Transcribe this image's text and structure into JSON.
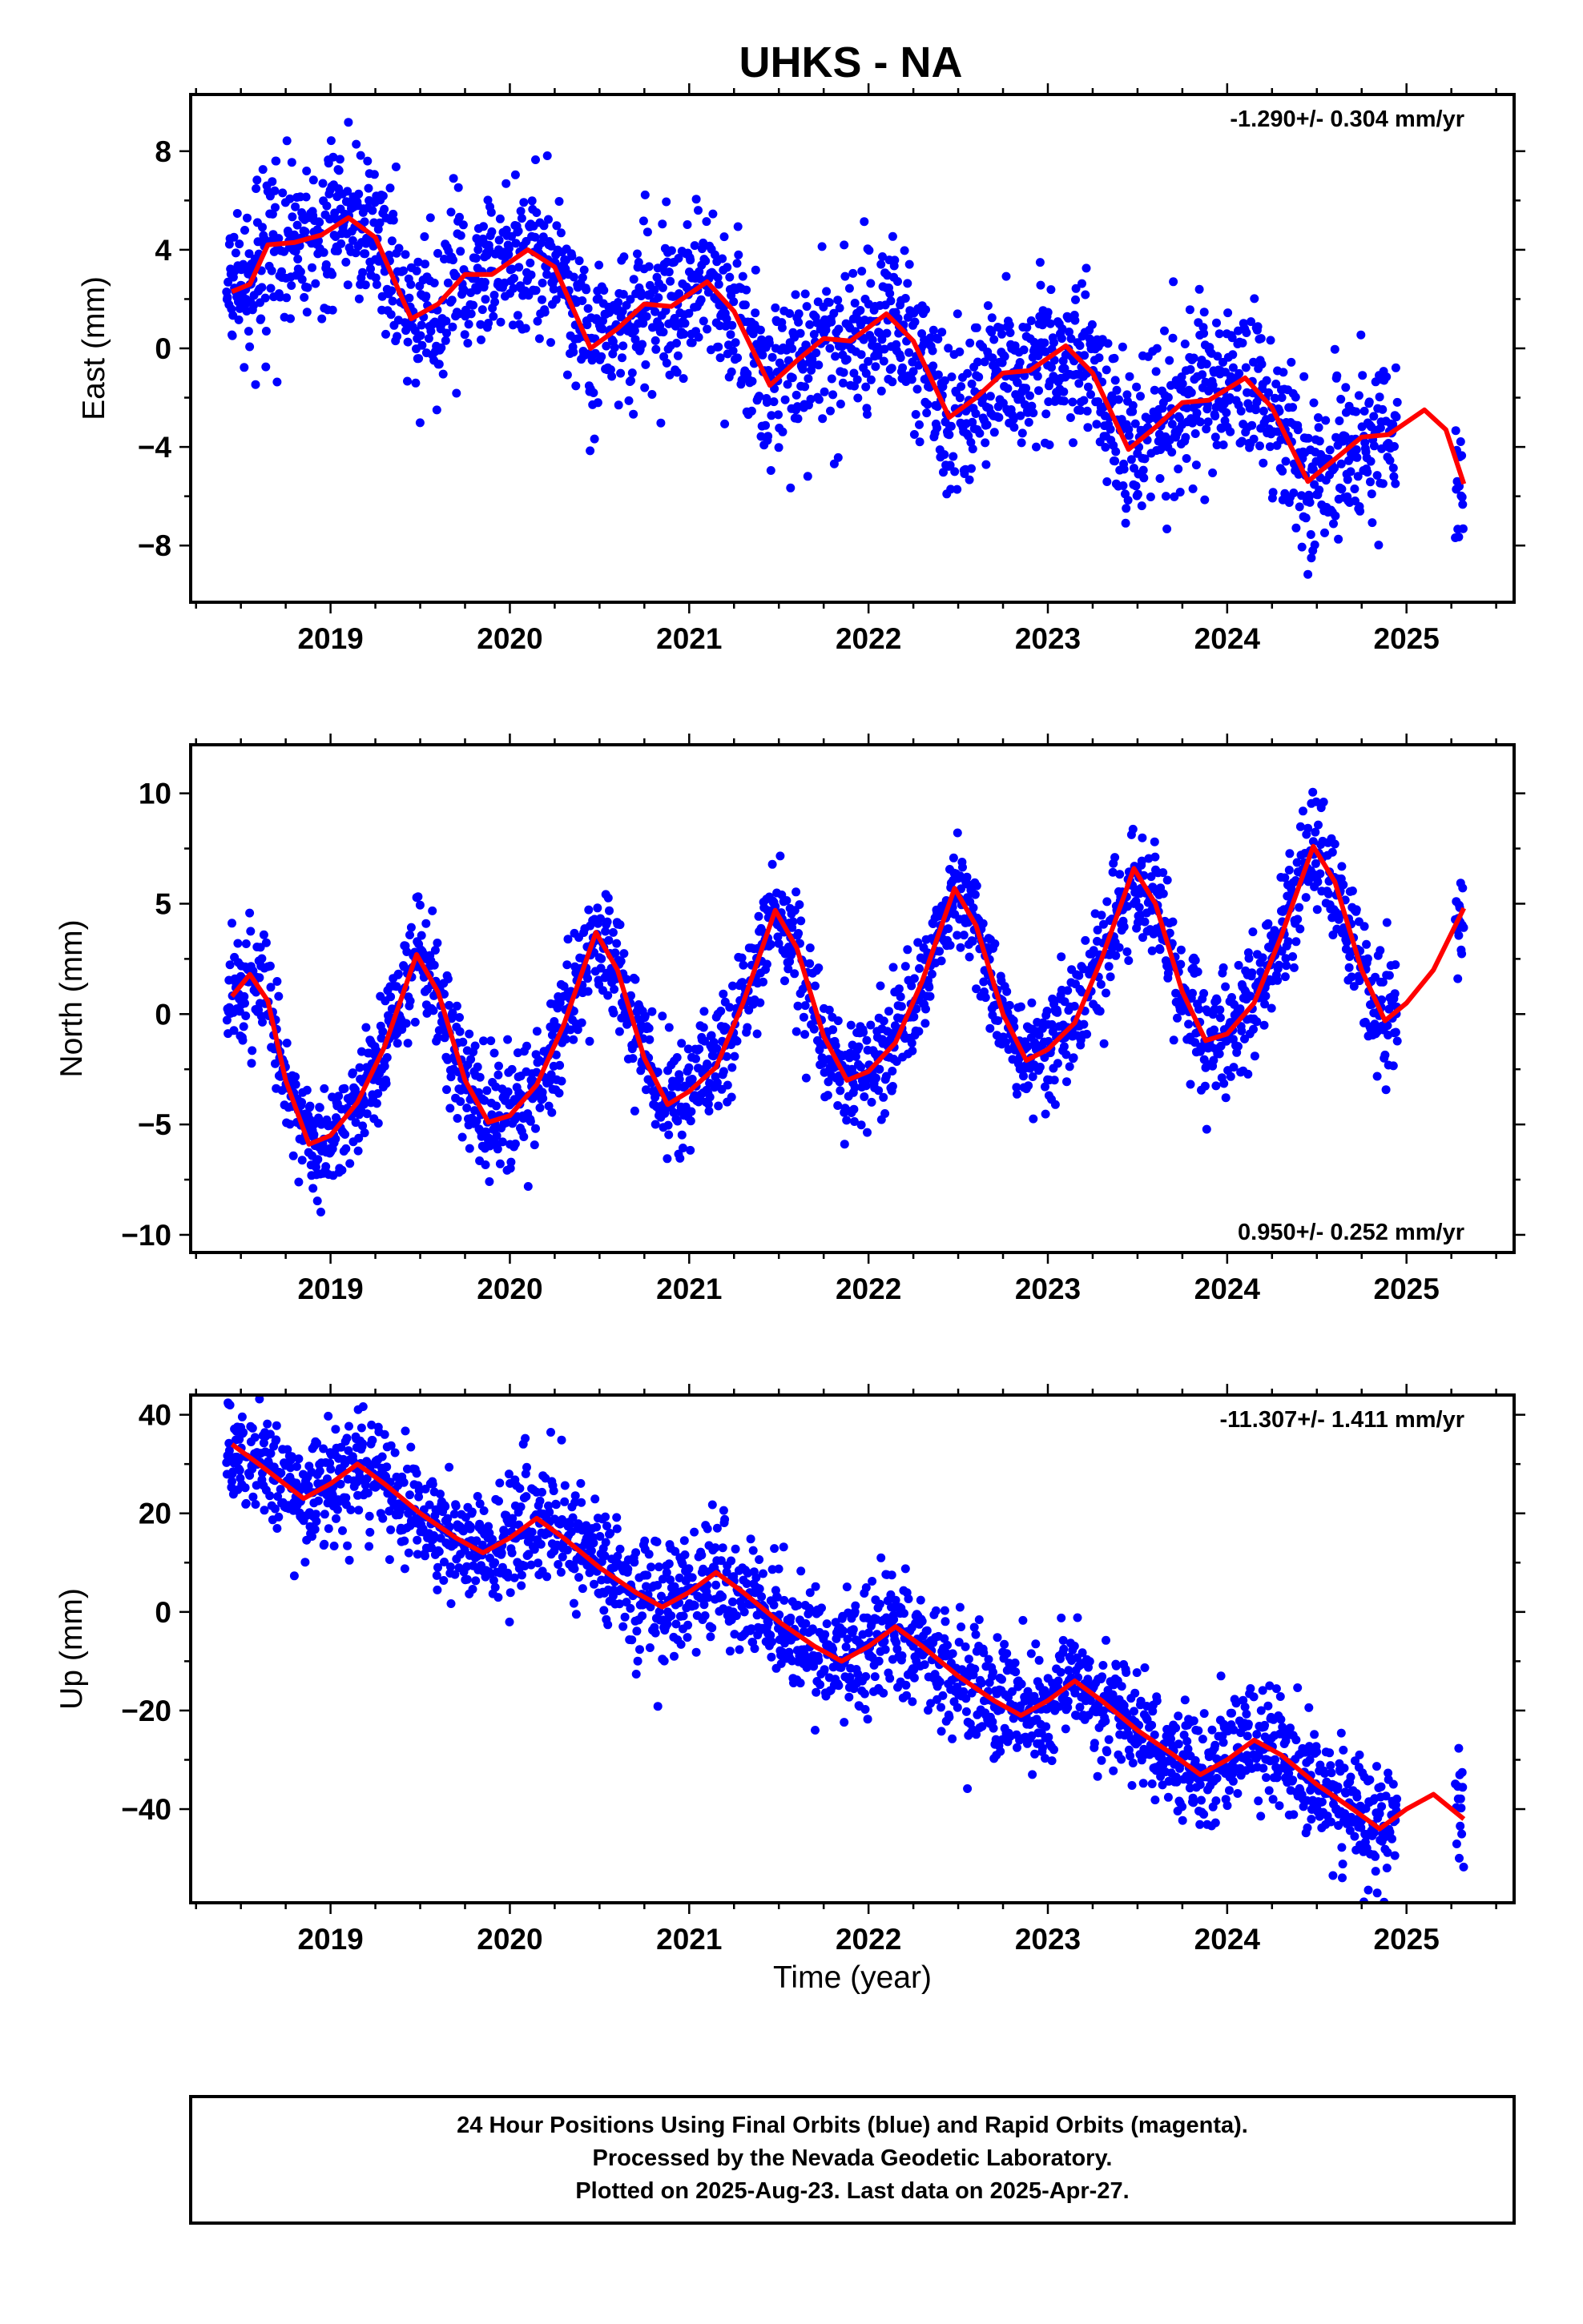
{
  "title": "UHKS - NA",
  "colors": {
    "final_orbits": "#0000ff",
    "model": "#ff0000",
    "frame": "#000000"
  },
  "footer": {
    "lines": [
      "24 Hour Positions Using Final Orbits (blue) and Rapid Orbits (magenta).",
      "Processed by the Nevada Geodetic Laboratory.",
      "Plotted on 2025-Aug-23. Last data on 2025-Apr-27."
    ]
  },
  "chart_data": [
    {
      "type": "scatter",
      "component": "east",
      "xlabel": "",
      "ylabel": "East (mm)",
      "rate_label": "-1.290+/- 0.304 mm/yr",
      "rate_position": "top-right",
      "xlim": [
        2018.22,
        2025.6
      ],
      "ylim": [
        -10.3,
        10.3
      ],
      "x_ticks": [
        2019,
        2020,
        2021,
        2022,
        2023,
        2024,
        2025
      ],
      "y_ticks": [
        -8,
        -4,
        0,
        4,
        8
      ],
      "y_tick_labels": [
        "−8",
        "−4",
        "0",
        "4",
        "8"
      ],
      "data_start": 2018.42,
      "data_end": 2025.32,
      "trend_rate": -1.29,
      "noise_sd": 1.6,
      "model_curve": [
        [
          2018.45,
          2.3
        ],
        [
          2018.55,
          2.6
        ],
        [
          2018.65,
          4.2
        ],
        [
          2018.8,
          4.3
        ],
        [
          2018.95,
          4.6
        ],
        [
          2019.1,
          5.3
        ],
        [
          2019.25,
          4.5
        ],
        [
          2019.45,
          1.2
        ],
        [
          2019.6,
          1.8
        ],
        [
          2019.75,
          3.0
        ],
        [
          2019.9,
          3.0
        ],
        [
          2020.1,
          4.0
        ],
        [
          2020.25,
          3.3
        ],
        [
          2020.45,
          0.0
        ],
        [
          2020.6,
          0.8
        ],
        [
          2020.75,
          1.8
        ],
        [
          2020.9,
          1.7
        ],
        [
          2021.1,
          2.7
        ],
        [
          2021.25,
          1.5
        ],
        [
          2021.45,
          -1.5
        ],
        [
          2021.6,
          -0.5
        ],
        [
          2021.75,
          0.4
        ],
        [
          2021.9,
          0.3
        ],
        [
          2022.1,
          1.4
        ],
        [
          2022.25,
          0.3
        ],
        [
          2022.45,
          -2.8
        ],
        [
          2022.6,
          -2.0
        ],
        [
          2022.75,
          -1.0
        ],
        [
          2022.9,
          -0.9
        ],
        [
          2023.1,
          0.1
        ],
        [
          2023.25,
          -1.0
        ],
        [
          2023.45,
          -4.1
        ],
        [
          2023.6,
          -3.2
        ],
        [
          2023.75,
          -2.2
        ],
        [
          2023.9,
          -2.1
        ],
        [
          2024.1,
          -1.2
        ],
        [
          2024.25,
          -2.4
        ],
        [
          2024.45,
          -5.4
        ],
        [
          2024.6,
          -4.5
        ],
        [
          2024.75,
          -3.6
        ],
        [
          2024.9,
          -3.5
        ],
        [
          2025.1,
          -2.5
        ],
        [
          2025.22,
          -3.3
        ],
        [
          2025.32,
          -5.5
        ]
      ]
    },
    {
      "type": "scatter",
      "component": "north",
      "xlabel": "",
      "ylabel": "North (mm)",
      "rate_label": "0.950+/- 0.252 mm/yr",
      "rate_position": "bottom-right",
      "xlim": [
        2018.22,
        2025.6
      ],
      "ylim": [
        -10.8,
        12.2
      ],
      "x_ticks": [
        2019,
        2020,
        2021,
        2022,
        2023,
        2024,
        2025
      ],
      "y_ticks": [
        -10,
        -5,
        0,
        5,
        10
      ],
      "y_tick_labels": [
        "−10",
        "−5",
        "0",
        "5",
        "10"
      ],
      "data_start": 2018.42,
      "data_end": 2025.32,
      "trend_rate": 0.95,
      "noise_sd": 1.3,
      "model_curve": [
        [
          2018.45,
          0.8
        ],
        [
          2018.55,
          1.8
        ],
        [
          2018.65,
          0.6
        ],
        [
          2018.75,
          -3.0
        ],
        [
          2018.88,
          -5.9
        ],
        [
          2019.0,
          -5.5
        ],
        [
          2019.15,
          -4.0
        ],
        [
          2019.3,
          -1.5
        ],
        [
          2019.48,
          2.7
        ],
        [
          2019.6,
          1.0
        ],
        [
          2019.75,
          -3.0
        ],
        [
          2019.88,
          -4.9
        ],
        [
          2020.0,
          -4.6
        ],
        [
          2020.15,
          -3.2
        ],
        [
          2020.3,
          -0.5
        ],
        [
          2020.48,
          3.7
        ],
        [
          2020.6,
          2.0
        ],
        [
          2020.75,
          -2.0
        ],
        [
          2020.88,
          -4.1
        ],
        [
          2021.0,
          -3.5
        ],
        [
          2021.15,
          -2.4
        ],
        [
          2021.3,
          0.5
        ],
        [
          2021.48,
          4.7
        ],
        [
          2021.6,
          3.0
        ],
        [
          2021.75,
          -1.0
        ],
        [
          2021.88,
          -3.0
        ],
        [
          2022.0,
          -2.6
        ],
        [
          2022.15,
          -1.3
        ],
        [
          2022.3,
          1.5
        ],
        [
          2022.48,
          5.7
        ],
        [
          2022.6,
          4.0
        ],
        [
          2022.75,
          0.0
        ],
        [
          2022.88,
          -2.1
        ],
        [
          2023.0,
          -1.6
        ],
        [
          2023.15,
          -0.4
        ],
        [
          2023.3,
          2.5
        ],
        [
          2023.48,
          6.6
        ],
        [
          2023.6,
          5.0
        ],
        [
          2023.75,
          1.0
        ],
        [
          2023.88,
          -1.2
        ],
        [
          2024.0,
          -0.9
        ],
        [
          2024.15,
          0.5
        ],
        [
          2024.3,
          3.5
        ],
        [
          2024.48,
          7.6
        ],
        [
          2024.6,
          6.0
        ],
        [
          2024.75,
          2.0
        ],
        [
          2024.88,
          -0.3
        ],
        [
          2025.0,
          0.5
        ],
        [
          2025.15,
          2.0
        ],
        [
          2025.32,
          4.8
        ]
      ]
    },
    {
      "type": "scatter",
      "component": "up",
      "xlabel": "Time (year)",
      "ylabel": "Up (mm)",
      "rate_label": "-11.307+/- 1.411 mm/yr",
      "rate_position": "top-right",
      "xlim": [
        2018.22,
        2025.6
      ],
      "ylim": [
        -59,
        44
      ],
      "x_ticks": [
        2019,
        2020,
        2021,
        2022,
        2023,
        2024,
        2025
      ],
      "y_ticks": [
        -40,
        -20,
        0,
        20,
        40
      ],
      "y_tick_labels": [
        "−40",
        "−20",
        "0",
        "20",
        "40"
      ],
      "data_start": 2018.42,
      "data_end": 2025.32,
      "trend_rate": -11.307,
      "noise_sd": 6,
      "model_curve": [
        [
          2018.45,
          34
        ],
        [
          2018.6,
          30
        ],
        [
          2018.85,
          23
        ],
        [
          2019.0,
          26
        ],
        [
          2019.15,
          30
        ],
        [
          2019.3,
          26
        ],
        [
          2019.5,
          20
        ],
        [
          2019.7,
          15
        ],
        [
          2019.85,
          12
        ],
        [
          2020.0,
          15
        ],
        [
          2020.15,
          19
        ],
        [
          2020.3,
          15
        ],
        [
          2020.5,
          9
        ],
        [
          2020.7,
          4
        ],
        [
          2020.85,
          1
        ],
        [
          2021.0,
          4
        ],
        [
          2021.15,
          8
        ],
        [
          2021.3,
          4
        ],
        [
          2021.5,
          -2
        ],
        [
          2021.7,
          -7
        ],
        [
          2021.85,
          -10
        ],
        [
          2022.0,
          -7
        ],
        [
          2022.15,
          -3
        ],
        [
          2022.3,
          -7
        ],
        [
          2022.5,
          -13
        ],
        [
          2022.7,
          -18
        ],
        [
          2022.85,
          -21
        ],
        [
          2023.0,
          -18
        ],
        [
          2023.15,
          -14
        ],
        [
          2023.3,
          -18
        ],
        [
          2023.5,
          -24
        ],
        [
          2023.7,
          -29
        ],
        [
          2023.85,
          -33
        ],
        [
          2024.0,
          -30
        ],
        [
          2024.15,
          -26
        ],
        [
          2024.3,
          -29
        ],
        [
          2024.5,
          -35
        ],
        [
          2024.7,
          -40
        ],
        [
          2024.85,
          -44
        ],
        [
          2025.0,
          -40
        ],
        [
          2025.15,
          -37
        ],
        [
          2025.32,
          -42
        ]
      ]
    }
  ]
}
